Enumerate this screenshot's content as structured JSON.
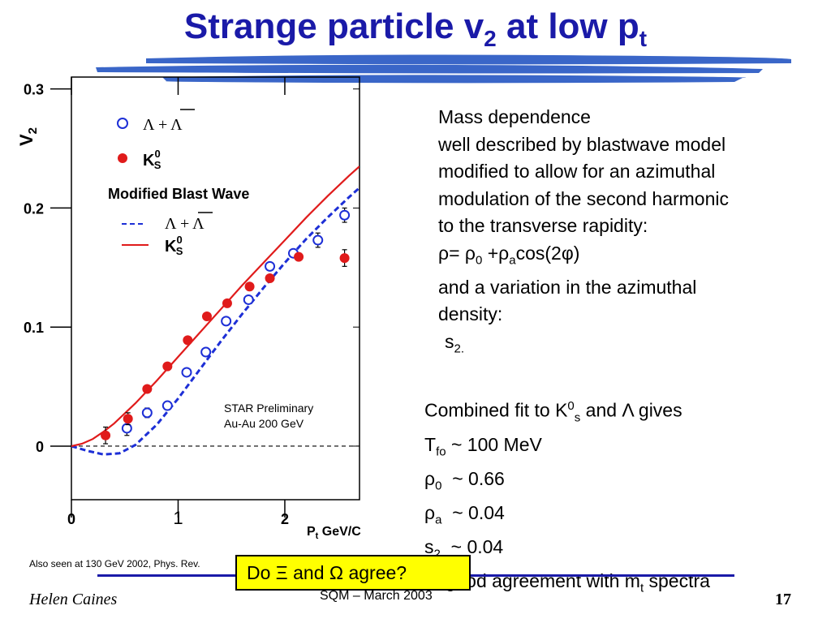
{
  "slide": {
    "title_main": "Strange particle v",
    "title_sub": "2",
    "title_tail": " at low p",
    "title_sub2": "t",
    "footnote": "Also seen at 130 GeV 2002, Phys. Rev.",
    "callout": "Do Ξ and Ω agree?",
    "author": "Helen Caines",
    "conference": "SQM – March 2003",
    "page_number": "17"
  },
  "text_block_1": {
    "line1": "Mass dependence",
    "line2": "well described by blastwave model",
    "line3": "modified to allow for an azimuthal",
    "line4": "modulation of the second harmonic",
    "line5": "to the transverse rapidity:",
    "rho_eq_a": "ρ= ρ",
    "rho_eq_sub0": "0",
    "rho_eq_b": " +ρ",
    "rho_eq_suba": "a",
    "rho_eq_c": "cos(2φ)",
    "line7": "and a variation in the azimuthal",
    "line8": "density:",
    "s_main": "s",
    "s_sub": "2."
  },
  "text_block_2": {
    "l1_a": "Combined fit to K",
    "l1_sup": "0",
    "l1_sub": "s",
    "l1_b": " and Λ gives",
    "l2_a": "T",
    "l2_sub": "fo",
    "l2_b": " ~ 100 MeV",
    "l3_a": "ρ",
    "l3_sub": "0",
    "l3_b": "  ~ 0.66",
    "l4_a": "ρ",
    "l4_sub": "a",
    "l4_b": "  ~ 0.04",
    "l5_a": "s",
    "l5_sub": "2",
    "l5_b": "  ~ 0.04",
    "l6_a": "In good agreement with m",
    "l6_sub": "t",
    "l6_b": " spectra"
  },
  "colors": {
    "title": "#1a1aa8",
    "brush": "#3a66c8",
    "lambda": "#1d2fd6",
    "kshort": "#e01b1b",
    "callout_bg": "#ffff00"
  },
  "chart_data": {
    "type": "scatter",
    "xlim": [
      0,
      2.7
    ],
    "ylim": [
      -0.045,
      0.31
    ],
    "x_ticks": [
      0,
      1,
      2
    ],
    "x_tick_labels": [
      "0",
      "1",
      "2"
    ],
    "y_ticks": [
      0,
      0.1,
      0.2,
      0.3
    ],
    "y_tick_labels": [
      "0",
      "0.1",
      "0.2",
      "0.3"
    ],
    "xlabel": "P",
    "xlabel_sub": "t",
    "xlabel_tail": " GeV/C",
    "ylabel": "V",
    "ylabel_sub": "2",
    "legend": {
      "lambda_label": "Λ + Λ",
      "kshort_label": "K",
      "kshort_sup": "0",
      "kshort_sub": "S",
      "model_title": "Modified Blast Wave",
      "line_lambda_label": "Λ + Λ",
      "line_kshort_label": "K",
      "line_kshort_sup": "0",
      "line_kshort_sub": "S"
    },
    "annotation_line1": "STAR Preliminary",
    "annotation_line2": "Au-Au 200 GeV",
    "series": [
      {
        "name": "Λ + Λ",
        "marker": "open-circle",
        "points": [
          {
            "x": 0.52,
            "y": 0.015,
            "err": 0.006
          },
          {
            "x": 0.71,
            "y": 0.028,
            "err": 0.004
          },
          {
            "x": 0.9,
            "y": 0.034
          },
          {
            "x": 1.08,
            "y": 0.062
          },
          {
            "x": 1.26,
            "y": 0.079
          },
          {
            "x": 1.45,
            "y": 0.105
          },
          {
            "x": 1.66,
            "y": 0.123
          },
          {
            "x": 1.86,
            "y": 0.151
          },
          {
            "x": 2.08,
            "y": 0.162
          },
          {
            "x": 2.31,
            "y": 0.173,
            "err": 0.006
          },
          {
            "x": 2.56,
            "y": 0.194,
            "err": 0.006
          }
        ]
      },
      {
        "name": "K0S",
        "marker": "filled-circle",
        "points": [
          {
            "x": 0.32,
            "y": 0.009,
            "err": 0.007
          },
          {
            "x": 0.53,
            "y": 0.023,
            "err": 0.005
          },
          {
            "x": 0.71,
            "y": 0.048
          },
          {
            "x": 0.9,
            "y": 0.067
          },
          {
            "x": 1.09,
            "y": 0.089
          },
          {
            "x": 1.27,
            "y": 0.109
          },
          {
            "x": 1.46,
            "y": 0.12
          },
          {
            "x": 1.67,
            "y": 0.134
          },
          {
            "x": 1.86,
            "y": 0.141
          },
          {
            "x": 2.13,
            "y": 0.159
          },
          {
            "x": 2.56,
            "y": 0.158,
            "err": 0.007
          }
        ]
      }
    ],
    "curves": [
      {
        "name": "blast-wave-lambda",
        "style": "dashed",
        "x": [
          0,
          0.15,
          0.3,
          0.45,
          0.6,
          0.8,
          1.0,
          1.2,
          1.4,
          1.6,
          1.8,
          2.0,
          2.2,
          2.4,
          2.6,
          2.7
        ],
        "y": [
          0,
          -0.004,
          -0.007,
          -0.006,
          0.001,
          0.018,
          0.04,
          0.064,
          0.088,
          0.111,
          0.133,
          0.154,
          0.174,
          0.192,
          0.209,
          0.217
        ]
      },
      {
        "name": "blast-wave-kshort",
        "style": "solid",
        "x": [
          0,
          0.1,
          0.2,
          0.3,
          0.4,
          0.6,
          0.8,
          1.0,
          1.2,
          1.4,
          1.6,
          1.8,
          2.0,
          2.2,
          2.4,
          2.6,
          2.7
        ],
        "y": [
          0,
          0.002,
          0.006,
          0.012,
          0.019,
          0.036,
          0.055,
          0.075,
          0.095,
          0.115,
          0.135,
          0.154,
          0.173,
          0.192,
          0.21,
          0.227,
          0.235
        ]
      }
    ],
    "reference_line": {
      "y": 0,
      "style": "dashed"
    }
  }
}
